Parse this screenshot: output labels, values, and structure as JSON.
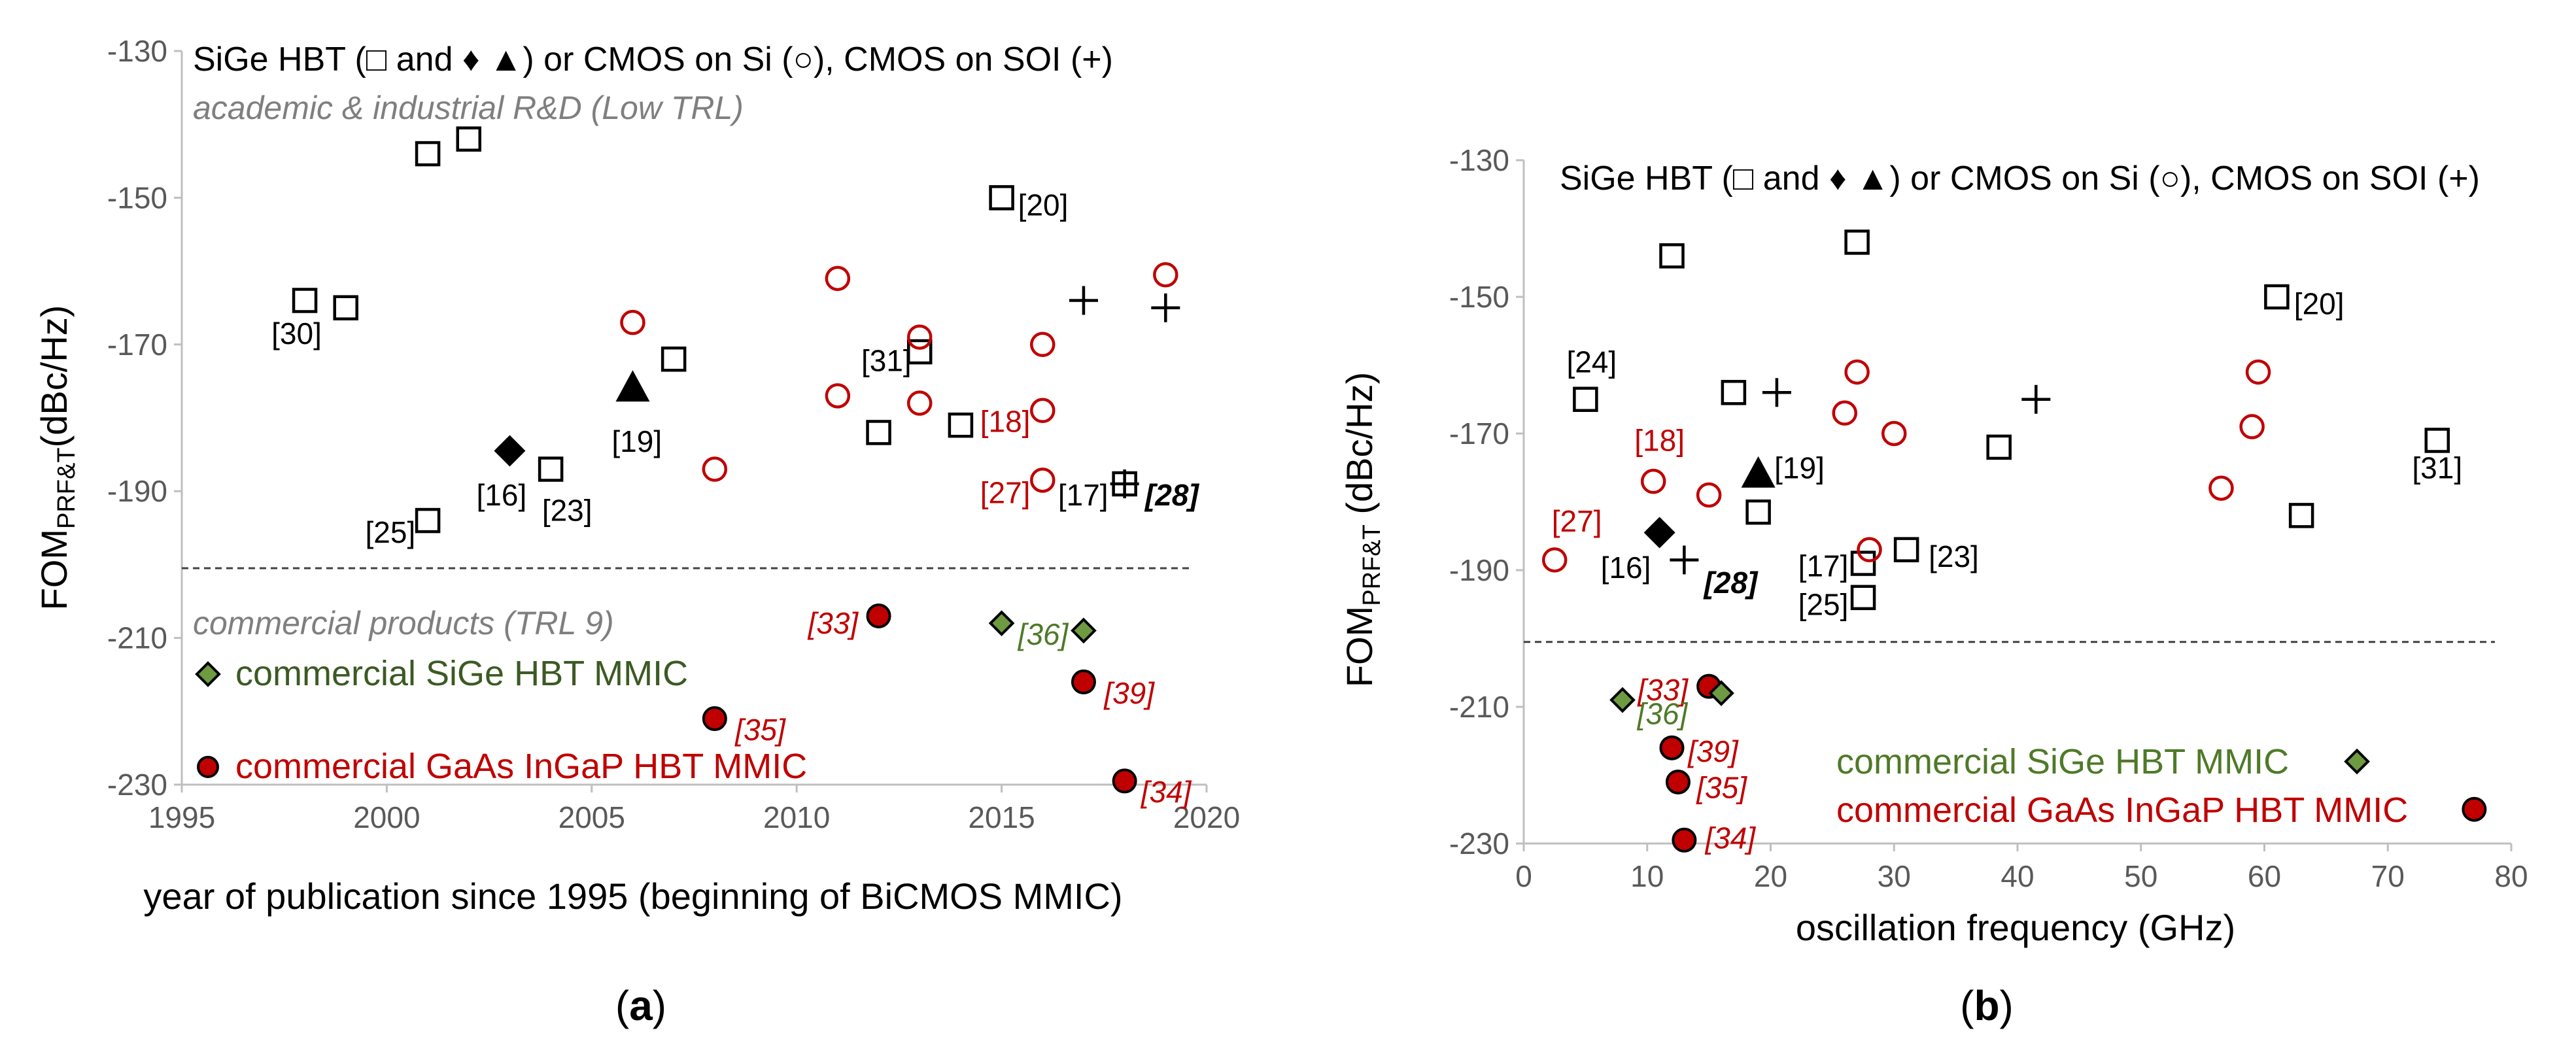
{
  "chart_data": [
    {
      "id": "a",
      "type": "scatter",
      "panel_label": "(a)",
      "header": "SiGe HBT (□ and ♦ ▲) or CMOS on Si (○), CMOS on SOI (+)",
      "zone_top_label": "academic & industrial  R&D (Low TRL)",
      "zone_bottom_label": "commercial products (TRL 9)",
      "legend": [
        {
          "label": "commercial SiGe HBT MMIC",
          "marker": "diamond_green",
          "color": "#3c5a23"
        },
        {
          "label": "commercial GaAs InGaP HBT MMIC",
          "marker": "circle_filled",
          "color": "#c00000"
        }
      ],
      "ylabel_main": "FOM",
      "ylabel_sub": "PRF&T",
      "ylabel_unit": "(dBc/Hz)",
      "xlabel": "year of publication since 1995 (beginning of BiCMOS MMIC)",
      "xlim": [
        1995,
        2020
      ],
      "ylim": [
        -230,
        -130
      ],
      "xticks": [
        1995,
        2000,
        2005,
        2010,
        2015,
        2020
      ],
      "yticks": [
        -130,
        -150,
        -170,
        -190,
        -210,
        -230
      ],
      "divider_y": -200.5,
      "points": [
        {
          "x": 2001,
          "y": -144,
          "m": "square"
        },
        {
          "x": 2002,
          "y": -142,
          "m": "square"
        },
        {
          "x": 1998,
          "y": -164,
          "m": "square"
        },
        {
          "x": 1999,
          "y": -165,
          "m": "square"
        },
        {
          "x": 2001,
          "y": -194,
          "m": "square"
        },
        {
          "x": 2004,
          "y": -187,
          "m": "square"
        },
        {
          "x": 2007,
          "y": -172,
          "m": "square"
        },
        {
          "x": 2012,
          "y": -182,
          "m": "square"
        },
        {
          "x": 2013,
          "y": -171,
          "m": "square"
        },
        {
          "x": 2014,
          "y": -181,
          "m": "square"
        },
        {
          "x": 2015,
          "y": -150,
          "m": "square"
        },
        {
          "x": 2018,
          "y": -189,
          "m": "square"
        },
        {
          "x": 2003,
          "y": -184.5,
          "m": "diamond"
        },
        {
          "x": 2006,
          "y": -176,
          "m": "triangle"
        },
        {
          "x": 2006,
          "y": -167,
          "m": "circle_open"
        },
        {
          "x": 2008,
          "y": -187,
          "m": "circle_open"
        },
        {
          "x": 2011,
          "y": -161,
          "m": "circle_open"
        },
        {
          "x": 2011,
          "y": -177,
          "m": "circle_open"
        },
        {
          "x": 2013,
          "y": -169,
          "m": "circle_open"
        },
        {
          "x": 2013,
          "y": -178,
          "m": "circle_open"
        },
        {
          "x": 2016,
          "y": -170,
          "m": "circle_open"
        },
        {
          "x": 2016,
          "y": -179,
          "m": "circle_open"
        },
        {
          "x": 2016,
          "y": -188.5,
          "m": "circle_open"
        },
        {
          "x": 2019,
          "y": -160.5,
          "m": "circle_open"
        },
        {
          "x": 2017,
          "y": -164,
          "m": "plus"
        },
        {
          "x": 2019,
          "y": -165,
          "m": "plus"
        },
        {
          "x": 2018,
          "y": -189,
          "m": "plus"
        },
        {
          "x": 2012,
          "y": -207,
          "m": "circle_filled"
        },
        {
          "x": 2008,
          "y": -221,
          "m": "circle_filled"
        },
        {
          "x": 2017,
          "y": -216,
          "m": "circle_filled"
        },
        {
          "x": 2018,
          "y": -229.5,
          "m": "circle_filled"
        },
        {
          "x": 2015,
          "y": -208,
          "m": "diamond_green"
        },
        {
          "x": 2017,
          "y": -209,
          "m": "diamond_green"
        }
      ],
      "labels": [
        {
          "text": "[20]",
          "x": 2015.4,
          "y": -151,
          "color": "black",
          "style": "normal",
          "anchor": "start"
        },
        {
          "text": "[30]",
          "x": 1997.8,
          "y": -168.5,
          "color": "black",
          "style": "normal",
          "anchor": "middle"
        },
        {
          "text": "[31]",
          "x": 2012.8,
          "y": -172.2,
          "color": "black",
          "style": "normal",
          "anchor": "end"
        },
        {
          "text": "[19]",
          "x": 2006.1,
          "y": -183.2,
          "color": "black",
          "style": "normal",
          "anchor": "middle"
        },
        {
          "text": "[16]",
          "x": 2002.8,
          "y": -190.5,
          "color": "black",
          "style": "normal",
          "anchor": "middle"
        },
        {
          "text": "[23]",
          "x": 2004.4,
          "y": -192.6,
          "color": "black",
          "style": "normal",
          "anchor": "middle"
        },
        {
          "text": "[25]",
          "x": 2000.7,
          "y": -195.6,
          "color": "black",
          "style": "normal",
          "anchor": "end"
        },
        {
          "text": "[18]",
          "x": 2015.7,
          "y": -180.5,
          "color": "red",
          "style": "normal",
          "anchor": "end"
        },
        {
          "text": "[27]",
          "x": 2015.7,
          "y": -190.2,
          "color": "red",
          "style": "normal",
          "anchor": "end"
        },
        {
          "text": "[17]",
          "x": 2017.6,
          "y": -190.5,
          "color": "black",
          "style": "normal",
          "anchor": "end"
        },
        {
          "text": "[28]",
          "x": 2018.5,
          "y": -190.5,
          "color": "black",
          "style": "bolditalic",
          "anchor": "start"
        },
        {
          "text": "[33]",
          "x": 2011.5,
          "y": -208,
          "color": "red",
          "style": "italic",
          "anchor": "end"
        },
        {
          "text": "[36]",
          "x": 2015.4,
          "y": -209.5,
          "color": "green",
          "style": "italic",
          "anchor": "start"
        },
        {
          "text": "[39]",
          "x": 2017.5,
          "y": -217.5,
          "color": "red",
          "style": "italic",
          "anchor": "start"
        },
        {
          "text": "[35]",
          "x": 2008.5,
          "y": -222.5,
          "color": "red",
          "style": "italic",
          "anchor": "start"
        },
        {
          "text": "[34]",
          "x": 2018.4,
          "y": -231,
          "color": "red",
          "style": "italic",
          "anchor": "start"
        }
      ]
    },
    {
      "id": "b",
      "type": "scatter",
      "panel_label": "(b)",
      "header": "SiGe HBT (□ and ♦ ▲) or CMOS on Si (○), CMOS on SOI (+)",
      "legend": [
        {
          "label": "commercial SiGe HBT MMIC",
          "marker": "diamond_green",
          "color": "#3c5a23"
        },
        {
          "label": "commercial GaAs InGaP HBT MMIC",
          "marker": "circle_filled",
          "color": "#c00000"
        }
      ],
      "ylabel_main": "FOM",
      "ylabel_sub": "PRF&T",
      "ylabel_unit": " (dBc/Hz)",
      "xlabel": "oscillation frequency (GHz)",
      "xlim": [
        0,
        80
      ],
      "ylim": [
        -230,
        -130
      ],
      "xticks": [
        0,
        10,
        20,
        30,
        40,
        50,
        60,
        70,
        80
      ],
      "yticks": [
        -130,
        -150,
        -170,
        -190,
        -210,
        -230
      ],
      "divider_y": -200.5,
      "points": [
        {
          "x": 12,
          "y": -144,
          "m": "square"
        },
        {
          "x": 27,
          "y": -142,
          "m": "square"
        },
        {
          "x": 5,
          "y": -165,
          "m": "square"
        },
        {
          "x": 17,
          "y": -164,
          "m": "square"
        },
        {
          "x": 61,
          "y": -150,
          "m": "square"
        },
        {
          "x": 38.5,
          "y": -172,
          "m": "square"
        },
        {
          "x": 74,
          "y": -171,
          "m": "square"
        },
        {
          "x": 19,
          "y": -181.5,
          "m": "square"
        },
        {
          "x": 63,
          "y": -182,
          "m": "square"
        },
        {
          "x": 31,
          "y": -187,
          "m": "square"
        },
        {
          "x": 27.5,
          "y": -189,
          "m": "square"
        },
        {
          "x": 27.5,
          "y": -194,
          "m": "square"
        },
        {
          "x": 11,
          "y": -184.5,
          "m": "diamond"
        },
        {
          "x": 19,
          "y": -176,
          "m": "triangle"
        },
        {
          "x": 2.5,
          "y": -188.5,
          "m": "circle_open"
        },
        {
          "x": 10.5,
          "y": -177,
          "m": "circle_open"
        },
        {
          "x": 15,
          "y": -179,
          "m": "circle_open"
        },
        {
          "x": 26,
          "y": -167,
          "m": "circle_open"
        },
        {
          "x": 27,
          "y": -161,
          "m": "circle_open"
        },
        {
          "x": 28,
          "y": -187,
          "m": "circle_open"
        },
        {
          "x": 30,
          "y": -170,
          "m": "circle_open"
        },
        {
          "x": 56.5,
          "y": -178,
          "m": "circle_open"
        },
        {
          "x": 59,
          "y": -169,
          "m": "circle_open"
        },
        {
          "x": 59.5,
          "y": -161,
          "m": "circle_open"
        },
        {
          "x": 13,
          "y": -188.5,
          "m": "plus"
        },
        {
          "x": 20.5,
          "y": -164,
          "m": "plus"
        },
        {
          "x": 41.5,
          "y": -165,
          "m": "plus"
        },
        {
          "x": 15,
          "y": -207,
          "m": "circle_filled"
        },
        {
          "x": 12,
          "y": -216,
          "m": "circle_filled"
        },
        {
          "x": 12.5,
          "y": -221,
          "m": "circle_filled"
        },
        {
          "x": 13,
          "y": -229.5,
          "m": "circle_filled"
        },
        {
          "x": 77,
          "y": -225,
          "m": "circle_filled"
        },
        {
          "x": 8,
          "y": -209,
          "m": "diamond_green"
        },
        {
          "x": 16,
          "y": -208,
          "m": "diamond_green"
        },
        {
          "x": 67.5,
          "y": -218,
          "m": "diamond_green"
        }
      ],
      "labels": [
        {
          "text": "[20]",
          "x": 62.4,
          "y": -151,
          "color": "black",
          "style": "normal",
          "anchor": "start"
        },
        {
          "text": "[24]",
          "x": 5.5,
          "y": -159.5,
          "color": "black",
          "style": "normal",
          "anchor": "middle"
        },
        {
          "text": "[18]",
          "x": 11,
          "y": -171,
          "color": "red",
          "style": "normal",
          "anchor": "middle"
        },
        {
          "text": "[19]",
          "x": 20.3,
          "y": -175,
          "color": "black",
          "style": "normal",
          "anchor": "start"
        },
        {
          "text": "[27]",
          "x": 4.3,
          "y": -182.8,
          "color": "red",
          "style": "normal",
          "anchor": "middle"
        },
        {
          "text": "[16]",
          "x": 10.3,
          "y": -189.6,
          "color": "black",
          "style": "normal",
          "anchor": "end"
        },
        {
          "text": "[28]",
          "x": 14.6,
          "y": -191.8,
          "color": "black",
          "style": "bolditalic",
          "anchor": "start"
        },
        {
          "text": "[31]",
          "x": 74,
          "y": -175,
          "color": "black",
          "style": "normal",
          "anchor": "middle"
        },
        {
          "text": "[23]",
          "x": 32.8,
          "y": -188,
          "color": "black",
          "style": "normal",
          "anchor": "start"
        },
        {
          "text": "[17]",
          "x": 26.3,
          "y": -189.4,
          "color": "black",
          "style": "normal",
          "anchor": "end"
        },
        {
          "text": "[25]",
          "x": 26.3,
          "y": -195,
          "color": "black",
          "style": "normal",
          "anchor": "end"
        },
        {
          "text": "[33]",
          "x": 13.3,
          "y": -207.5,
          "color": "red",
          "style": "italic",
          "anchor": "end"
        },
        {
          "text": "[36]",
          "x": 9.2,
          "y": -211,
          "color": "green",
          "style": "italic",
          "anchor": "start"
        },
        {
          "text": "[39]",
          "x": 13.3,
          "y": -216.5,
          "color": "red",
          "style": "italic",
          "anchor": "start"
        },
        {
          "text": "[35]",
          "x": 14,
          "y": -221.8,
          "color": "red",
          "style": "italic",
          "anchor": "start"
        },
        {
          "text": "[34]",
          "x": 14.7,
          "y": -229.2,
          "color": "red",
          "style": "italic",
          "anchor": "start"
        }
      ]
    }
  ]
}
